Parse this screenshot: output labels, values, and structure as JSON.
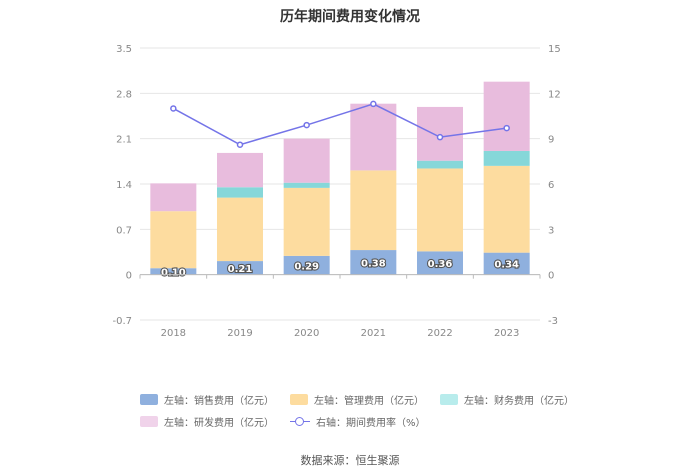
{
  "title": "历年期间费用变化情况",
  "source": "数据来源：恒生聚源",
  "chart_data": {
    "type": "bar",
    "stacked": true,
    "title": "历年期间费用变化情况",
    "categories": [
      "2018",
      "2019",
      "2020",
      "2021",
      "2022",
      "2023"
    ],
    "left_axis": {
      "min": -0.7,
      "max": 3.5,
      "ticks": [
        "-0.7",
        "0",
        "0.7",
        "1.4",
        "2.1",
        "2.8",
        "3.5"
      ]
    },
    "right_axis": {
      "min": -3,
      "max": 15,
      "ticks": [
        "-3",
        "0",
        "3",
        "6",
        "9",
        "12",
        "15"
      ]
    },
    "series": [
      {
        "name": "左轴：销售费用（亿元）",
        "type": "bar",
        "color": "#8fb0de",
        "values": [
          0.1,
          0.21,
          0.29,
          0.38,
          0.36,
          0.34
        ],
        "labels": [
          "0.10",
          "0.21",
          "0.29",
          "0.38",
          "0.36",
          "0.34"
        ]
      },
      {
        "name": "左轴：管理费用（亿元）",
        "type": "bar",
        "color": "#fddc9f",
        "values": [
          0.88,
          0.98,
          1.05,
          1.23,
          1.28,
          1.34
        ]
      },
      {
        "name": "左轴：财务费用（亿元）",
        "type": "bar",
        "color": "#86d7d9",
        "values": [
          0.0,
          0.16,
          0.08,
          0.0,
          0.12,
          0.23
        ]
      },
      {
        "name": "左轴：研发费用（亿元）",
        "type": "bar",
        "color": "#e8bcdd",
        "values": [
          0.43,
          0.53,
          0.68,
          1.03,
          0.83,
          1.07
        ]
      },
      {
        "name": "右轴：期间费用率（%）",
        "type": "line",
        "color": "#7474e8",
        "values": [
          11.0,
          8.6,
          9.9,
          11.3,
          9.1,
          9.7
        ]
      }
    ],
    "legend_position": "bottom",
    "grid": true
  }
}
